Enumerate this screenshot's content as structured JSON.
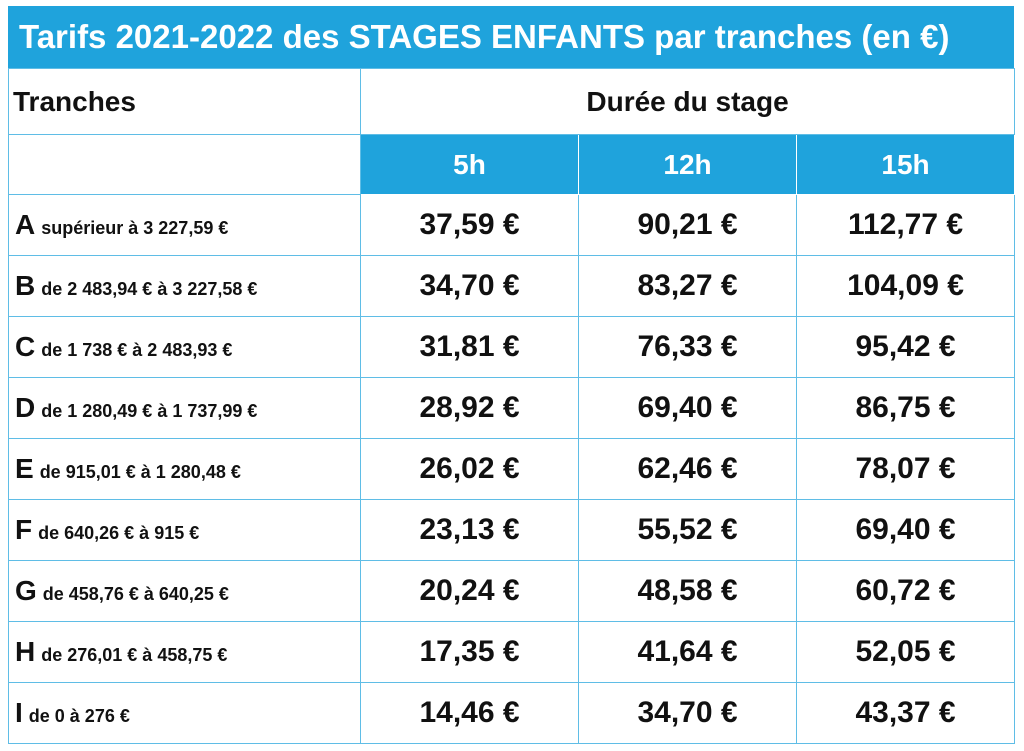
{
  "title": "Tarifs 2021-2022 des STAGES ENFANTS par tranches (en €)",
  "header": {
    "tranches_label": "Tranches",
    "duree_label": "Durée du stage",
    "durations": [
      "5h",
      "12h",
      "15h"
    ]
  },
  "rows": [
    {
      "letter": "A",
      "range": "supérieur à 3 227,59 €",
      "prices": [
        "37,59 €",
        "90,21 €",
        "112,77 €"
      ]
    },
    {
      "letter": "B",
      "range": "de 2 483,94 € à 3 227,58 €",
      "prices": [
        "34,70 €",
        "83,27 €",
        "104,09 €"
      ]
    },
    {
      "letter": "C",
      "range": "de 1 738 € à 2 483,93 €",
      "prices": [
        "31,81 €",
        "76,33 €",
        "95,42 €"
      ]
    },
    {
      "letter": "D",
      "range": "de 1 280,49 € à 1 737,99 €",
      "prices": [
        "28,92 €",
        "69,40 €",
        "86,75 €"
      ]
    },
    {
      "letter": "E",
      "range": "de 915,01 € à 1 280,48 €",
      "prices": [
        "26,02 €",
        "62,46 €",
        "78,07 €"
      ]
    },
    {
      "letter": "F",
      "range": "de 640,26 € à 915 €",
      "prices": [
        "23,13 €",
        "55,52 €",
        "69,40 €"
      ]
    },
    {
      "letter": "G",
      "range": "de 458,76 € à 640,25 €",
      "prices": [
        "20,24 €",
        "48,58 €",
        "60,72 €"
      ]
    },
    {
      "letter": "H",
      "range": "de 276,01 € à 458,75 €",
      "prices": [
        "17,35 €",
        "41,64 €",
        "52,05 €"
      ]
    },
    {
      "letter": "I",
      "range": "de 0 à 276 €",
      "prices": [
        "14,46 €",
        "34,70 €",
        "43,37 €"
      ]
    }
  ],
  "colors": {
    "accent": "#1fa3dc",
    "border": "#5fbde6"
  }
}
